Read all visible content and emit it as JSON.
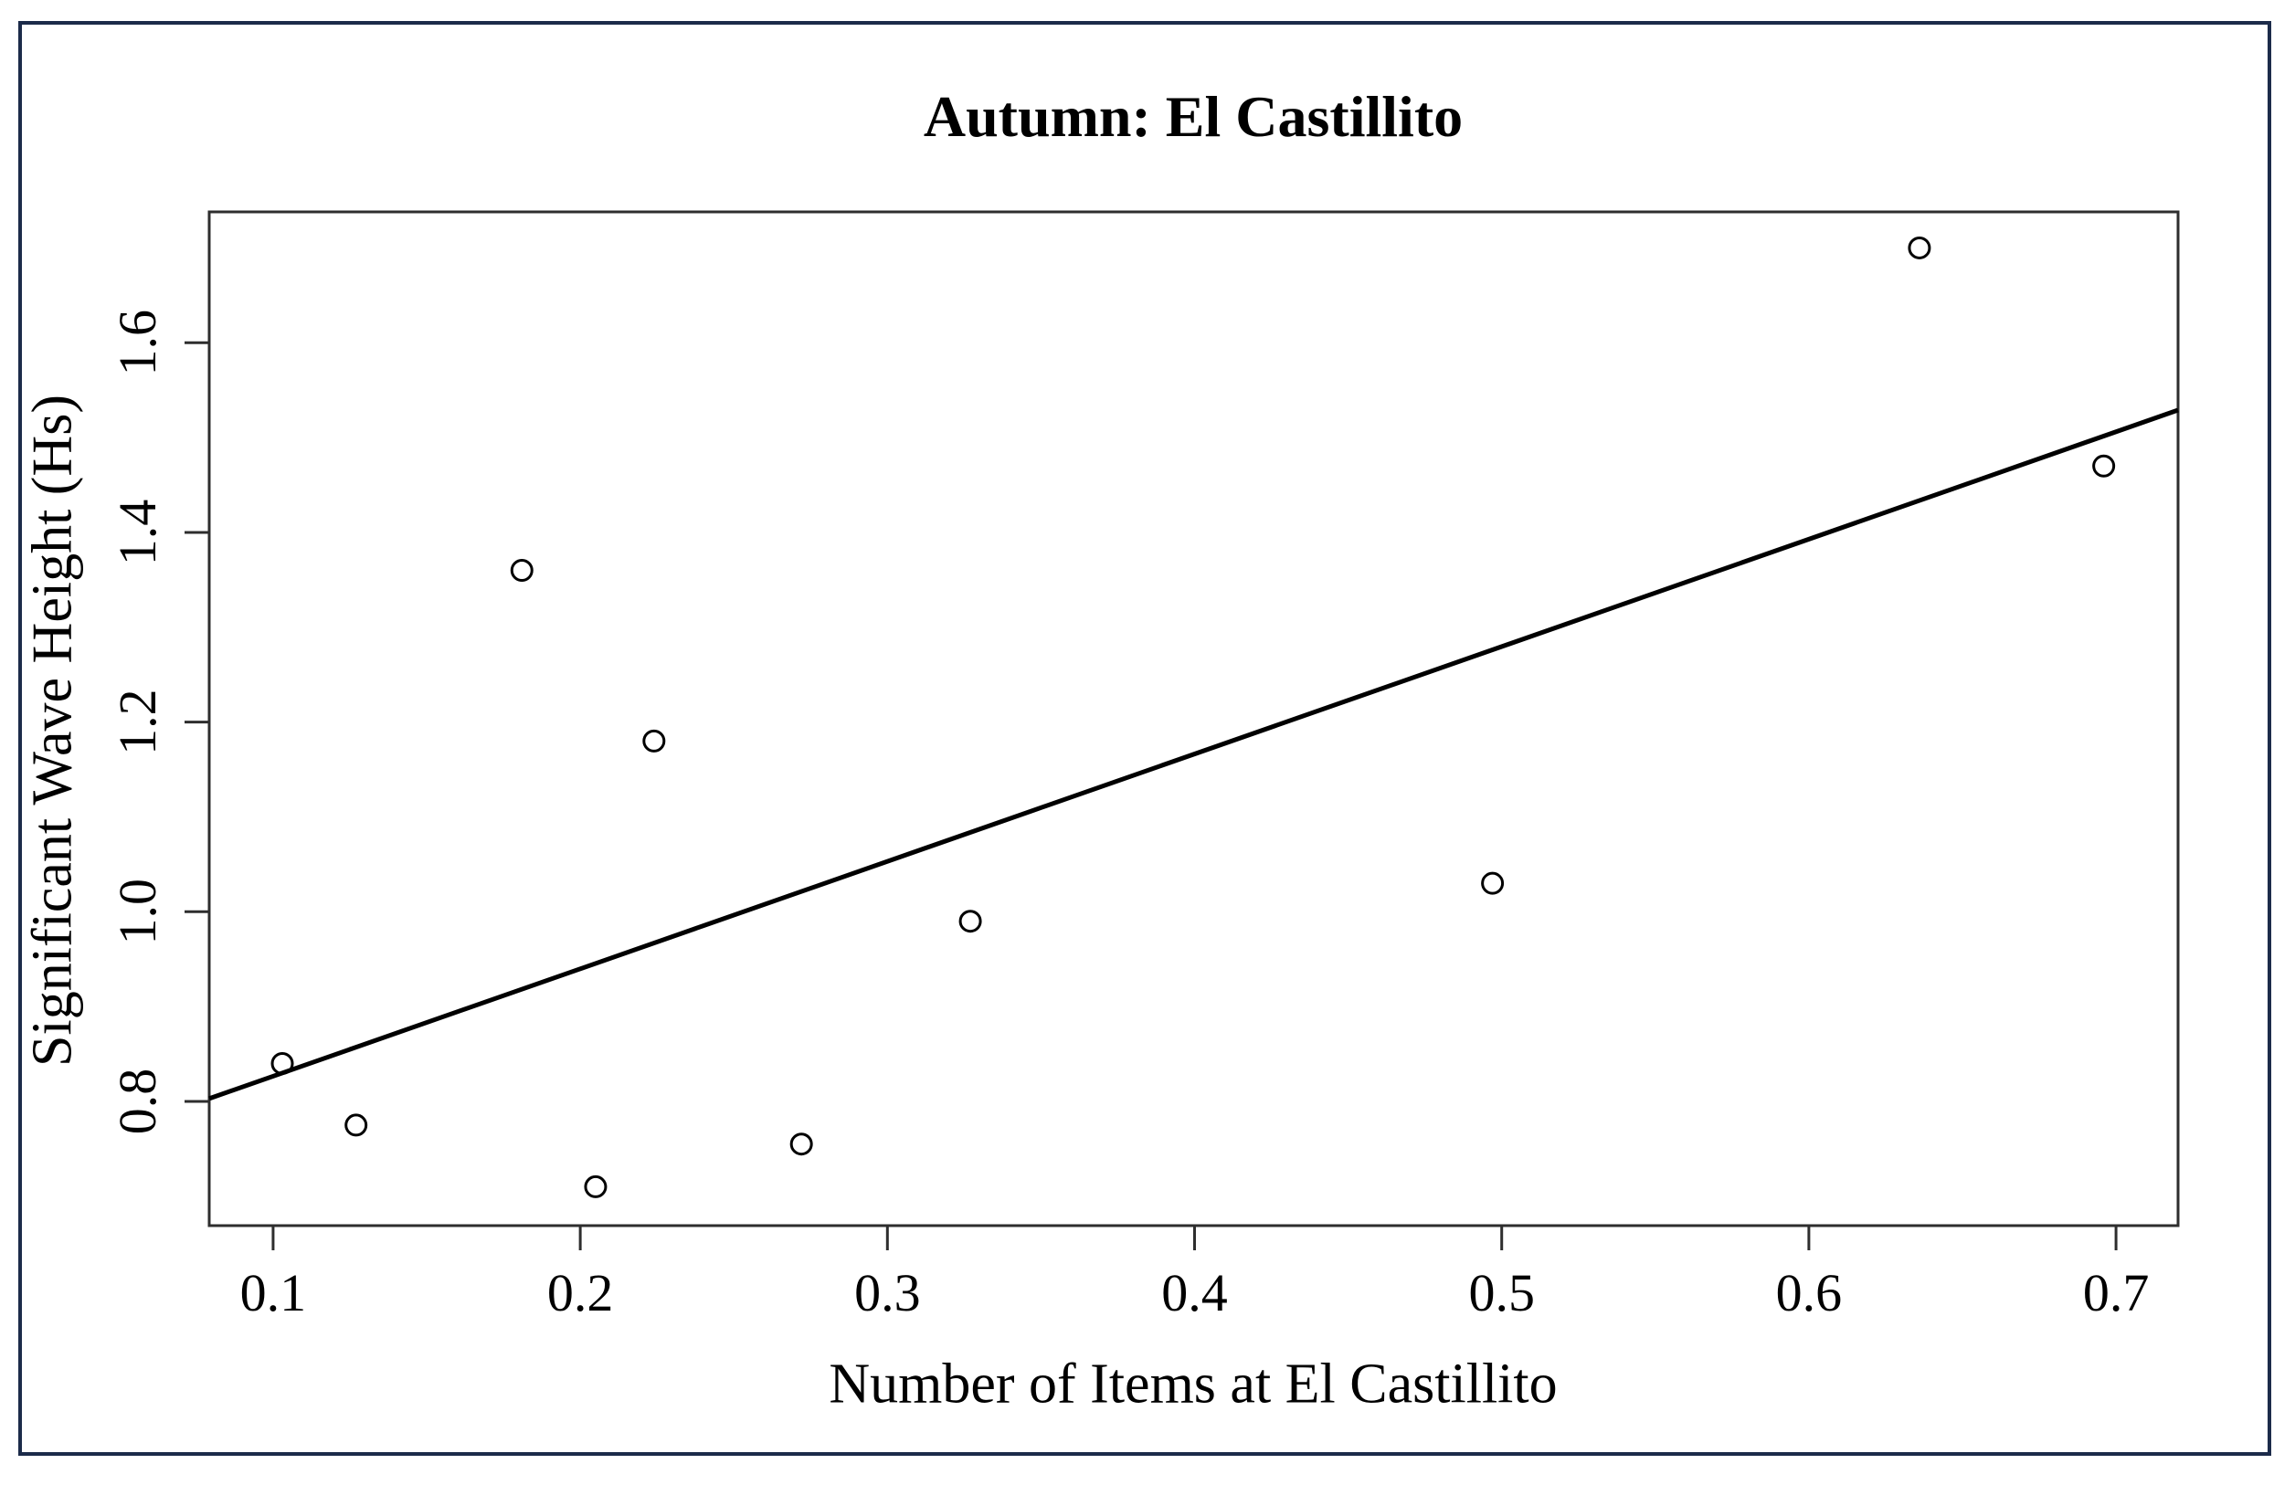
{
  "figure": {
    "border_color": "#1c2b4a",
    "background_color": "#ffffff"
  },
  "chart_data": {
    "type": "scatter",
    "title": "Autumn: El Castillito",
    "xlabel": "Number of Items at El Castillito",
    "ylabel": "Significant Wave Height (Hs)",
    "xlim": [
      0.0792,
      0.7202
    ],
    "ylim": [
      0.669,
      1.738
    ],
    "x_ticks": [
      0.1,
      0.2,
      0.3,
      0.4,
      0.5,
      0.6,
      0.7
    ],
    "x_tick_labels": [
      "0.1",
      "0.2",
      "0.3",
      "0.4",
      "0.5",
      "0.6",
      "0.7"
    ],
    "y_ticks": [
      0.8,
      1.0,
      1.2,
      1.4,
      1.6
    ],
    "y_tick_labels": [
      "0.8",
      "1.0",
      "1.2",
      "1.4",
      "1.6"
    ],
    "points": [
      [
        0.103,
        0.84
      ],
      [
        0.127,
        0.775
      ],
      [
        0.181,
        1.36
      ],
      [
        0.205,
        0.71
      ],
      [
        0.224,
        1.18
      ],
      [
        0.272,
        0.755
      ],
      [
        0.327,
        0.99
      ],
      [
        0.497,
        1.03
      ],
      [
        0.636,
        1.7
      ],
      [
        0.696,
        1.47
      ]
    ],
    "trend_line": {
      "x1": 0.0792,
      "y1": 0.803,
      "x2": 0.7202,
      "y2": 1.529
    },
    "marker": {
      "shape": "open-circle",
      "color": "#000000"
    },
    "trend_line_color": "#000000",
    "axis_color": "#2e2e2e",
    "grid": false,
    "legend": null
  }
}
